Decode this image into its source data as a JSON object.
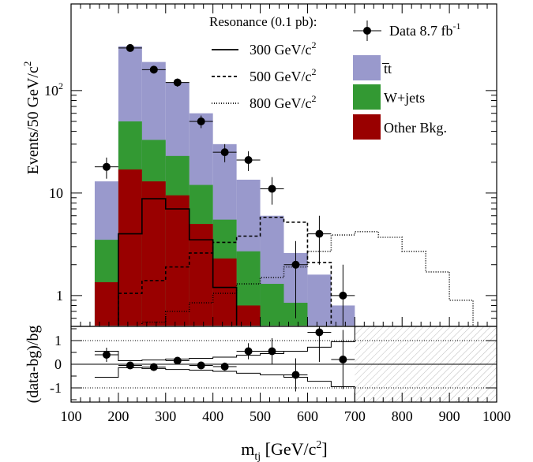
{
  "chart_data": [
    {
      "type": "histogram",
      "yscale": "log",
      "xlim": [
        100,
        1000
      ],
      "ylim": [
        0.5,
        700
      ],
      "bin_width": 50,
      "ylabel": "Events/50 GeV/c",
      "ylabel_sup": "2",
      "yticks": [
        {
          "v": 1,
          "label": "1"
        },
        {
          "v": 10,
          "label": "10"
        },
        {
          "v": 100,
          "label": "10",
          "sup": "2"
        }
      ],
      "stack": [
        {
          "name": "Other Bkg.",
          "color": "#990000",
          "x": [
            150,
            200,
            250,
            300,
            350,
            400,
            450
          ],
          "y": [
            1.35,
            17,
            13,
            9.5,
            5,
            2.3,
            0.8
          ]
        },
        {
          "name": "W+jets",
          "color": "#339933",
          "x": [
            150,
            200,
            250,
            300,
            350,
            400,
            450,
            500,
            550
          ],
          "y": [
            3.5,
            50,
            33,
            23,
            12,
            5.5,
            2.7,
            1.3,
            0.85
          ]
        },
        {
          "name": "t̅t",
          "color": "#9999cc",
          "x": [
            150,
            200,
            250,
            300,
            350,
            400,
            450,
            500,
            550,
            600,
            650
          ],
          "y": [
            13,
            270,
            190,
            120,
            60,
            30,
            13.5,
            6,
            2.6,
            1.6,
            0.8
          ]
        }
      ],
      "data": {
        "name": "Data 8.7 fb",
        "name_sup": "-1",
        "x": [
          175,
          225,
          275,
          325,
          375,
          425,
          475,
          525,
          575,
          625,
          675
        ],
        "y": [
          18,
          260,
          160,
          120,
          50,
          25,
          21,
          11,
          2,
          4,
          1
        ],
        "err_lo": [
          4.2,
          16,
          12.6,
          11,
          7,
          5,
          4.6,
          3.3,
          1.4,
          2,
          1
        ],
        "err_hi": [
          4.2,
          16,
          12.6,
          11,
          7,
          5,
          4.6,
          3.3,
          1.4,
          2,
          1
        ]
      },
      "resonances_title": "Resonance (0.1 pb):",
      "resonances": [
        {
          "name": "300 GeV/c",
          "sup": "2",
          "style": "solid",
          "x": [
            200,
            250,
            300,
            350,
            400,
            450
          ],
          "y": [
            4,
            8.8,
            7,
            3.5,
            1.2,
            0.5
          ]
        },
        {
          "name": "500 GeV/c",
          "sup": "2",
          "style": "dashed",
          "x": [
            200,
            250,
            300,
            350,
            400,
            450,
            500,
            550,
            600,
            650
          ],
          "y": [
            1.05,
            1.4,
            1.9,
            2.6,
            3.3,
            3.8,
            5.8,
            5.2,
            2.1,
            0.5
          ]
        },
        {
          "name": "800 GeV/c",
          "sup": "2",
          "style": "dotted",
          "x": [
            250,
            300,
            350,
            400,
            450,
            500,
            550,
            600,
            650,
            700,
            750,
            800,
            850,
            900,
            950
          ],
          "y": [
            0.55,
            0.7,
            0.85,
            1.05,
            1.3,
            1.5,
            1.9,
            2.7,
            3.9,
            4.2,
            3.7,
            2.7,
            1.7,
            0.9,
            0.5
          ]
        }
      ]
    },
    {
      "type": "ratio",
      "xlim": [
        100,
        1000
      ],
      "ylim": [
        -1.6,
        1.6
      ],
      "ylabel": "(data-bg)/bg",
      "xlabel": "m",
      "xlabel_sub": "tj",
      "xlabel_unit": " [GeV/c",
      "xlabel_unit_sup": "2",
      "xlabel_unit_end": "]",
      "xticks": [
        100,
        200,
        300,
        400,
        500,
        600,
        700,
        800,
        900,
        1000
      ],
      "xtick_labels": [
        "100",
        "200",
        "300",
        "400",
        "500",
        "600",
        "700",
        "800",
        "900",
        "1000"
      ],
      "yticks": [
        -1,
        0,
        1
      ],
      "ytick_labels": [
        "-1",
        "0",
        "1"
      ],
      "dotted_lines": [
        -1,
        1
      ],
      "hatched_from_x": 700,
      "points": {
        "x": [
          175,
          225,
          275,
          325,
          375,
          425,
          475,
          525,
          575,
          625,
          675
        ],
        "y": [
          0.4,
          -0.05,
          -0.12,
          0.15,
          -0.05,
          -0.1,
          0.55,
          0.55,
          -0.45,
          1.35,
          0.2
        ],
        "err": [
          0.3,
          0.06,
          0.07,
          0.09,
          0.12,
          0.17,
          0.34,
          0.55,
          0.7,
          1.25,
          1.25
        ]
      },
      "envelope_edges": [
        150,
        200,
        250,
        300,
        350,
        400,
        450,
        500,
        550,
        600,
        650,
        700
      ],
      "envelope_upper": [
        0.55,
        0.15,
        0.18,
        0.22,
        0.25,
        0.3,
        0.38,
        0.45,
        0.55,
        0.72,
        0.95,
        1.6
      ],
      "envelope_lower": [
        -0.55,
        -0.15,
        -0.18,
        -0.22,
        -0.25,
        -0.3,
        -0.38,
        -0.45,
        -0.55,
        -0.72,
        -0.95,
        -1.6
      ]
    }
  ]
}
